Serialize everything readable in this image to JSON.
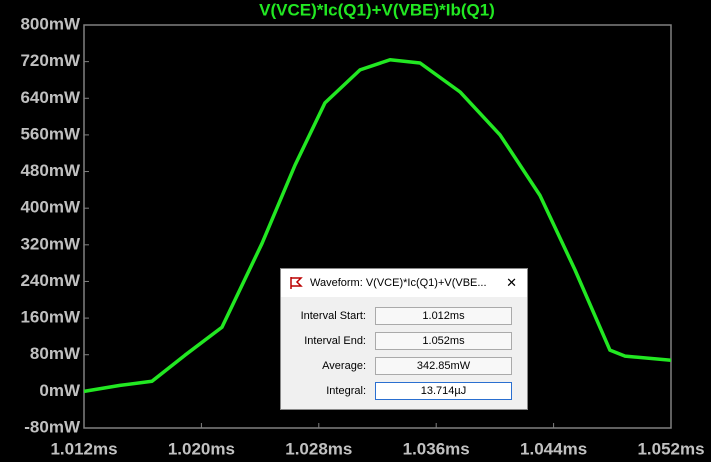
{
  "chart_data": {
    "type": "line",
    "x": [
      1.012,
      1.01445,
      1.01663,
      1.01888,
      1.0214,
      1.02413,
      1.02638,
      1.02842,
      1.03081,
      1.03285,
      1.0349,
      1.03762,
      1.04035,
      1.04307,
      1.04546,
      1.04784,
      1.04887,
      1.052
    ],
    "series": [
      {
        "name": "V(VCE)*Ic(Q1)+V(VBE)*Ib(Q1)",
        "color": "#22e822",
        "values": [
          0,
          13,
          22,
          79,
          140,
          323,
          494,
          630,
          702,
          724,
          717,
          654,
          560,
          428,
          265,
          90,
          77,
          68
        ]
      }
    ],
    "xlim": [
      1.012,
      1.052
    ],
    "xticks": [
      {
        "value": 1.012,
        "label": "1.012ms"
      },
      {
        "value": 1.02,
        "label": "1.020ms"
      },
      {
        "value": 1.028,
        "label": "1.028ms"
      },
      {
        "value": 1.036,
        "label": "1.036ms"
      },
      {
        "value": 1.044,
        "label": "1.044ms"
      },
      {
        "value": 1.052,
        "label": "1.052ms"
      }
    ],
    "ylim": [
      -80,
      800
    ],
    "yticks": [
      {
        "value": -80,
        "label": "-80mW"
      },
      {
        "value": 0,
        "label": "0mW"
      },
      {
        "value": 80,
        "label": "80mW"
      },
      {
        "value": 160,
        "label": "160mW"
      },
      {
        "value": 240,
        "label": "240mW"
      },
      {
        "value": 320,
        "label": "320mW"
      },
      {
        "value": 400,
        "label": "400mW"
      },
      {
        "value": 480,
        "label": "480mW"
      },
      {
        "value": 560,
        "label": "560mW"
      },
      {
        "value": 640,
        "label": "640mW"
      },
      {
        "value": 720,
        "label": "720mW"
      },
      {
        "value": 800,
        "label": "800mW"
      }
    ],
    "grid": false
  },
  "dialog": {
    "title": "Waveform: V(VCE)*Ic(Q1)+V(VBE...",
    "close": "✕",
    "rows": [
      [
        "Interval Start:",
        "1.012ms"
      ],
      [
        "Interval End:",
        "1.052ms"
      ],
      [
        "Average:",
        "342.85mW"
      ],
      [
        "Integral:",
        "13.714µJ"
      ]
    ]
  }
}
